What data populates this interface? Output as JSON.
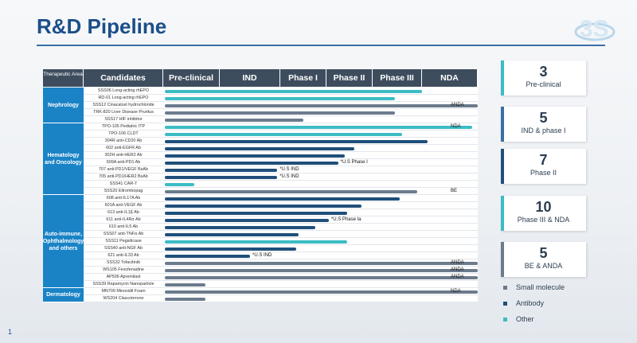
{
  "title": "R&D Pipeline",
  "page_number": "1",
  "colors": {
    "small_molecule": "#6b7b8c",
    "antibody": "#1f4f7a",
    "other": "#3bbcc4",
    "area": "#1a83c6"
  },
  "header": {
    "columns": [
      "Therapeutic Area",
      "Candidates",
      "Pre-clinical",
      "IND",
      "Phase I",
      "Phase II",
      "Phase III",
      "NDA"
    ]
  },
  "areas": [
    {
      "name": "Nephrology"
    },
    {
      "name": "Hematology and Oncology"
    },
    {
      "name": "Auto-immune, Ophthalmology and others"
    },
    {
      "name": "Dermatology"
    }
  ],
  "rows": [
    {
      "area": 0,
      "candidate": "SSS06 Long-acting rhEPO",
      "type": "other",
      "stage": 5.0,
      "note": ""
    },
    {
      "area": 0,
      "candidate": "RD-01 Long-acting rhEPO",
      "type": "other",
      "stage": 4.45,
      "note": ""
    },
    {
      "area": 0,
      "candidate": "SSS12 Cinacalcet hydrochloride",
      "type": "small_molecule",
      "stage": 6.15,
      "note": "ANDA"
    },
    {
      "area": 0,
      "candidate": "TRK-820 Liver Disease Pruritus",
      "type": "small_molecule",
      "stage": 4.45,
      "note": ""
    },
    {
      "area": 0,
      "candidate": "SSS17 HIF inhibitor",
      "type": "small_molecule",
      "stage": 2.5,
      "note": ""
    },
    {
      "area": 1,
      "candidate": "TPO-105 Pediatric ITP",
      "type": "other",
      "stage": 5.9,
      "note": "NDA"
    },
    {
      "area": 1,
      "candidate": "TPO-106 CLDT",
      "type": "other",
      "stage": 4.6,
      "note": ""
    },
    {
      "area": 1,
      "candidate": "304R anti-CD20 Ab",
      "type": "antibody",
      "stage": 5.1,
      "note": ""
    },
    {
      "area": 1,
      "candidate": "602 anti-EGFR Ab",
      "type": "antibody",
      "stage": 3.6,
      "note": ""
    },
    {
      "area": 1,
      "candidate": "302H anti-HER2 Ab",
      "type": "antibody",
      "stage": 3.4,
      "note": ""
    },
    {
      "area": 1,
      "candidate": "609A anti-PD1 Ab",
      "type": "antibody",
      "stage": 3.25,
      "note": "*U.S Phase I"
    },
    {
      "area": 1,
      "candidate": "707 anti-PD1/VEGF BsAb",
      "type": "antibody",
      "stage": 1.95,
      "note": "*U.S IND"
    },
    {
      "area": 1,
      "candidate": "705 anti-PD1/HER2 BsAb",
      "type": "antibody",
      "stage": 1.95,
      "note": "*U.S IND"
    },
    {
      "area": 1,
      "candidate": "SSS41 CAR-T",
      "type": "other",
      "stage": 0.55,
      "note": ""
    },
    {
      "area": 1,
      "candidate": "SSS20 Eltrombopag",
      "type": "small_molecule",
      "stage": 4.9,
      "note": "BE"
    },
    {
      "area": 2,
      "candidate": "608 anti-IL17A Ab",
      "type": "antibody",
      "stage": 4.55,
      "note": ""
    },
    {
      "area": 2,
      "candidate": "601A anti-VEGF Ab",
      "type": "antibody",
      "stage": 3.75,
      "note": ""
    },
    {
      "area": 2,
      "candidate": "613 anti-IL1β Ab",
      "type": "antibody",
      "stage": 3.45,
      "note": ""
    },
    {
      "area": 2,
      "candidate": "611 anti-IL4Rα Ab",
      "type": "antibody",
      "stage": 3.05,
      "note": "*U.S Phase Ia"
    },
    {
      "area": 2,
      "candidate": "610 anti-IL5 Ab",
      "type": "antibody",
      "stage": 2.75,
      "note": ""
    },
    {
      "area": 2,
      "candidate": "SSS07 anti-TNFα Ab",
      "type": "antibody",
      "stage": 2.4,
      "note": ""
    },
    {
      "area": 2,
      "candidate": "SSS11 Pegsiticase",
      "type": "other",
      "stage": 3.45,
      "note": ""
    },
    {
      "area": 2,
      "candidate": "SSS40 anti-NGF Ab",
      "type": "antibody",
      "stage": 2.35,
      "note": ""
    },
    {
      "area": 2,
      "candidate": "621 anti-IL33 Ab",
      "type": "antibody",
      "stage": 1.5,
      "note": "*U.S IND"
    },
    {
      "area": 2,
      "candidate": "SSS32 Tofacitinib",
      "type": "small_molecule",
      "stage": 6.15,
      "note": "ANDA"
    },
    {
      "area": 2,
      "candidate": "WS105 Fexofenadine",
      "type": "small_molecule",
      "stage": 6.15,
      "note": "ANDA"
    },
    {
      "area": 2,
      "candidate": "AP506 Apremilast",
      "type": "small_molecule",
      "stage": 6.15,
      "note": "ANDA"
    },
    {
      "area": 2,
      "candidate": "SSS39 Rapamycin Nanoparticle",
      "type": "small_molecule",
      "stage": 0.75,
      "note": ""
    },
    {
      "area": 3,
      "candidate": "MN709 Minoxidil Foam",
      "type": "small_molecule",
      "stage": 6.15,
      "note": "NDA"
    },
    {
      "area": 3,
      "candidate": "WS204 Clascoterone",
      "type": "small_molecule",
      "stage": 0.75,
      "note": ""
    }
  ],
  "stats": [
    {
      "value": "3",
      "label": "Pre-clinical",
      "accent": "#3bbcc4"
    },
    {
      "value": "5",
      "label": "IND & phase I",
      "accent": "#3a6ea5"
    },
    {
      "value": "7",
      "label": "Phase II",
      "accent": "#1f4f7a"
    },
    {
      "value": "10",
      "label": "Phase III & NDA",
      "accent": "#3bbcc4"
    },
    {
      "value": "5",
      "label": "BE & ANDA",
      "accent": "#6b7b8c"
    }
  ],
  "legend": [
    {
      "label": "Small molecule",
      "type": "small_molecule"
    },
    {
      "label": "Antibody",
      "type": "antibody"
    },
    {
      "label": "Other",
      "type": "other"
    }
  ]
}
